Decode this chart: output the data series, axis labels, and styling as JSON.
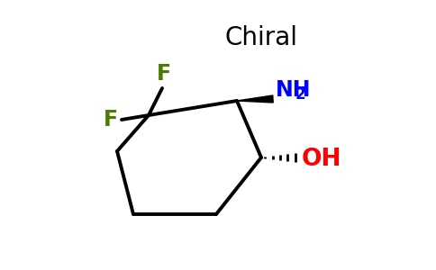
{
  "title": "Chiral",
  "title_color": "#000000",
  "title_fontsize": 20,
  "background_color": "#ffffff",
  "ring_color": "#000000",
  "ring_linewidth": 2.8,
  "F_color": "#4a7c00",
  "NH2_color": "#0000ff",
  "OH_color": "#ff0000",
  "F1_label": "F",
  "F2_label": "F",
  "NH2_label": "NH",
  "NH2_sub": "2",
  "OH_label": "OH",
  "label_fontsize": 17,
  "sub_fontsize": 12
}
